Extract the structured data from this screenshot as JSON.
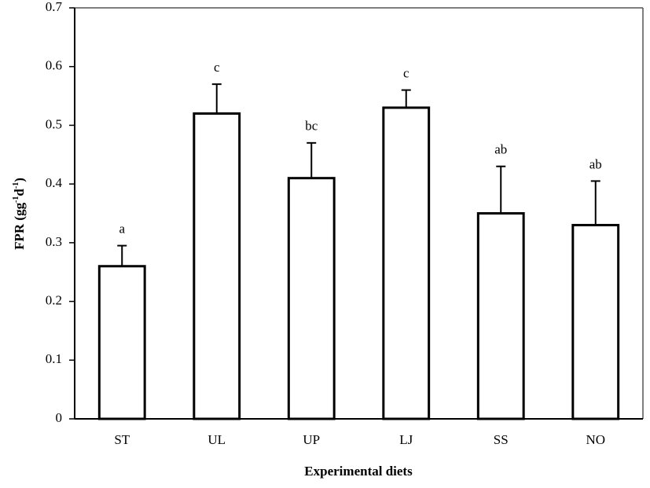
{
  "chart_data": {
    "type": "bar",
    "categories": [
      "ST",
      "UL",
      "UP",
      "LJ",
      "SS",
      "NO"
    ],
    "values": [
      0.26,
      0.52,
      0.41,
      0.53,
      0.35,
      0.33
    ],
    "errors": [
      0.035,
      0.05,
      0.06,
      0.03,
      0.08,
      0.075
    ],
    "annotations": [
      "a",
      "c",
      "bc",
      "c",
      "ab",
      "ab"
    ],
    "color": "#ffffff",
    "ylim": [
      0,
      0.7
    ],
    "yticks": [
      0,
      0.1,
      0.2,
      0.3,
      0.4,
      0.5,
      0.6,
      0.7
    ],
    "ylabel": [
      "FPR (gg",
      "-1",
      "d",
      "-1",
      ")"
    ],
    "xlabel": "Experimental diets",
    "xlabel_color": "#e8241c",
    "grid": false
  }
}
